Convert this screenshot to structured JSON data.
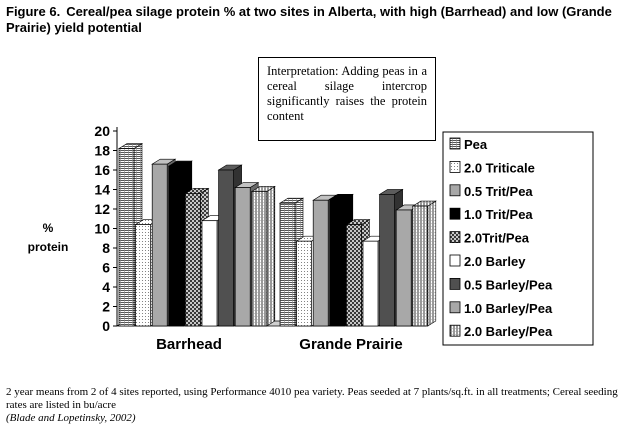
{
  "figure": {
    "title_lead": "Figure 6.",
    "title": "Cereal/pea silage protein % at two sites in Alberta, with high (Barrhead) and low (Grande Prairie) yield potential"
  },
  "annotation": {
    "text": "Interpretation: Adding peas in a cereal silage intercrop significantly raises the protein content"
  },
  "notes": {
    "line1": "2 year means from 2 of 4 sites reported, using Performance 4010 pea variety.  Peas seeded at 7 plants/sq.ft. in all treatments; Cereal seeding rates are listed in bu/acre",
    "citation": "(Blade and Lopetinsky, 2002)"
  },
  "chart_data": {
    "type": "bar",
    "style": "3d-clustered",
    "categories": [
      "Barrhead",
      "Grande Prairie"
    ],
    "ylabel_line1": "%",
    "ylabel_line2": "protein",
    "xlabel": "",
    "ylim": [
      0,
      20
    ],
    "yticks": [
      0,
      2,
      4,
      6,
      8,
      10,
      12,
      14,
      16,
      18,
      20
    ],
    "legend_position": "right",
    "grid": false,
    "series": [
      {
        "name": "Pea",
        "values": [
          18.2,
          12.6
        ],
        "fill": "pat-hgrid"
      },
      {
        "name": "2.0 Triticale",
        "values": [
          10.4,
          8.7
        ],
        "fill": "pat-dots"
      },
      {
        "name": "0.5 Trit/Pea",
        "values": [
          16.6,
          12.9
        ],
        "fill": "#a8a8a8"
      },
      {
        "name": "1.0 Trit/Pea",
        "values": [
          16.4,
          13.0
        ],
        "fill": "#000000"
      },
      {
        "name": "2.0Trit/Pea",
        "values": [
          13.6,
          10.4
        ],
        "fill": "pat-check"
      },
      {
        "name": "2.0 Barley",
        "values": [
          10.8,
          8.7
        ],
        "fill": "#ffffff"
      },
      {
        "name": "0.5 Barley/Pea",
        "values": [
          16.0,
          13.5
        ],
        "fill": "#505050"
      },
      {
        "name": "1.0 Barley/Pea",
        "values": [
          14.2,
          11.9
        ],
        "fill": "#a8a8a8"
      },
      {
        "name": "2.0 Barley/Pea",
        "values": [
          13.8,
          12.3
        ],
        "fill": "pat-vlines"
      }
    ]
  }
}
